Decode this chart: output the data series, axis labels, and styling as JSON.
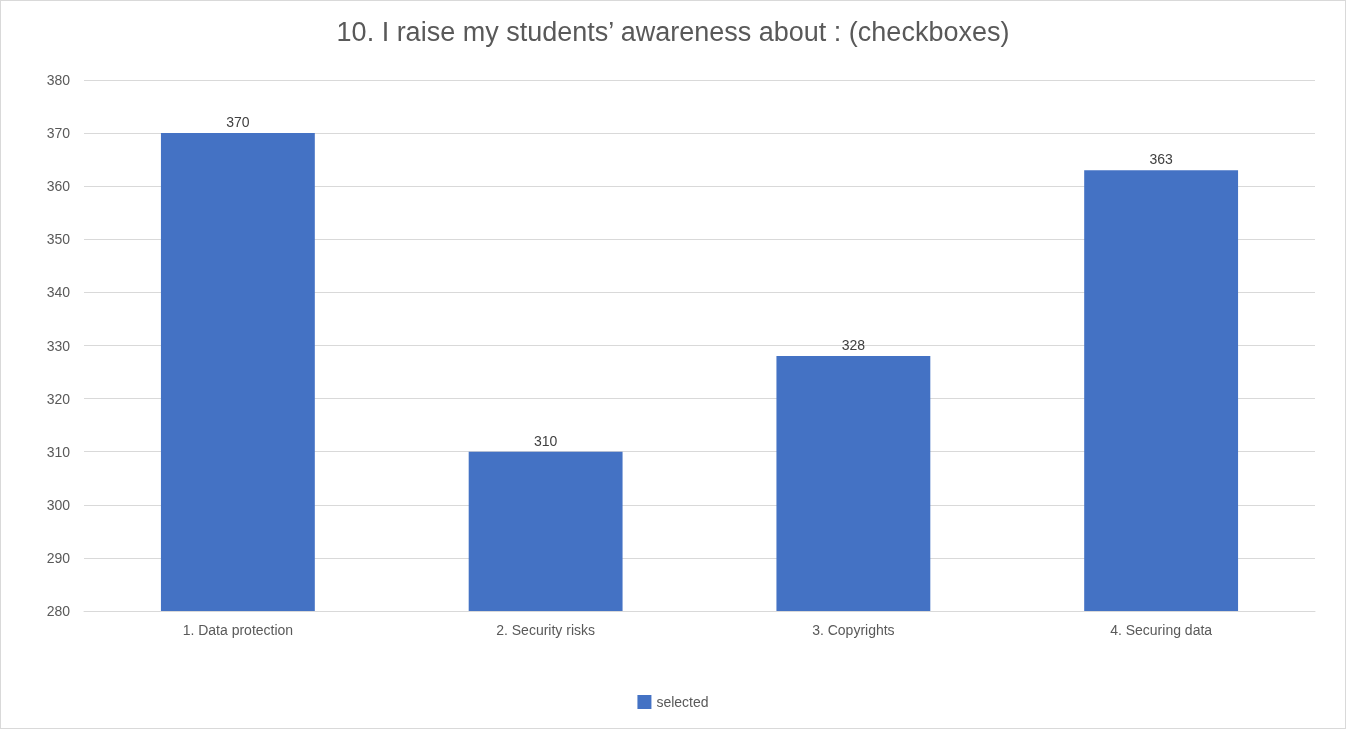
{
  "chart_data": {
    "type": "bar",
    "title": "10. I raise my students’ awareness about : (checkboxes)",
    "categories": [
      "1. Data protection",
      "2. Security risks",
      "3. Copyrights",
      "4. Securing data"
    ],
    "series": [
      {
        "name": "selected",
        "color": "#4472c4",
        "values": [
          370,
          310,
          328,
          363
        ]
      }
    ],
    "ylim": [
      280,
      380
    ],
    "yticks": [
      280,
      290,
      300,
      310,
      320,
      330,
      340,
      350,
      360,
      370,
      380
    ],
    "grid": "y",
    "legend": "bottom",
    "data_labels": true
  }
}
